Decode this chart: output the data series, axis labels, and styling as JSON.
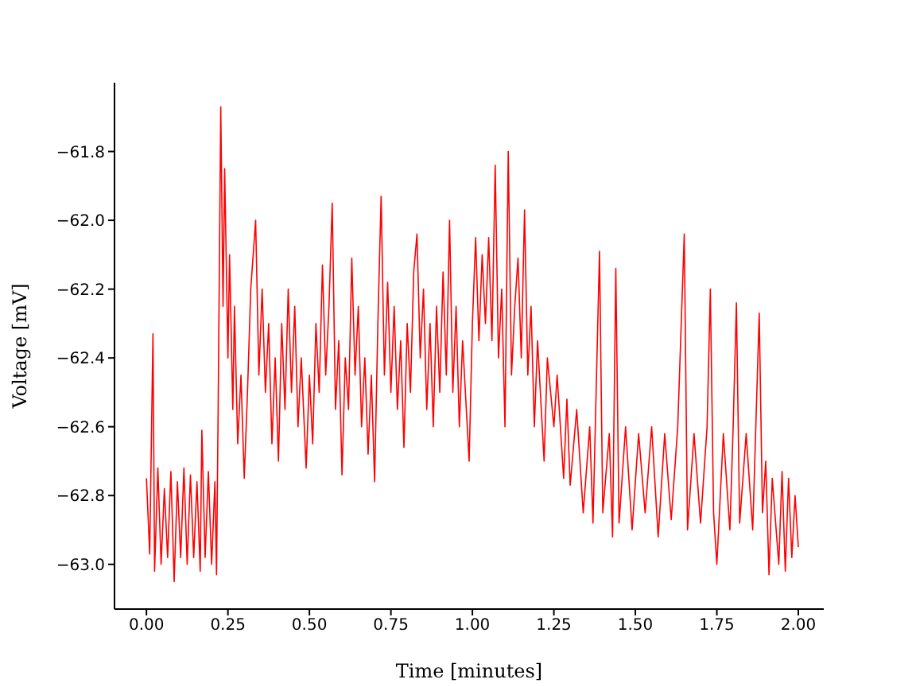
{
  "chart_data": {
    "type": "line",
    "xlabel": "Time [minutes]",
    "ylabel": "Voltage [mV]",
    "xlim": [
      -0.098,
      2.078
    ],
    "ylim": [
      -63.13,
      -61.6
    ],
    "xticks": [
      {
        "value": 0,
        "label": "0.00"
      },
      {
        "value": 0.25,
        "label": "0.25"
      },
      {
        "value": 0.5,
        "label": "0.50"
      },
      {
        "value": 0.75,
        "label": "0.75"
      },
      {
        "value": 1,
        "label": "1.00"
      },
      {
        "value": 1.25,
        "label": "1.25"
      },
      {
        "value": 1.5,
        "label": "1.50"
      },
      {
        "value": 1.75,
        "label": "1.75"
      },
      {
        "value": 2,
        "label": "2.00"
      }
    ],
    "yticks": [
      {
        "value": -63,
        "label": "−63.0"
      },
      {
        "value": -62.8,
        "label": "−62.8"
      },
      {
        "value": -62.6,
        "label": "−62.6"
      },
      {
        "value": -62.4,
        "label": "−62.4"
      },
      {
        "value": -62.2,
        "label": "−62.2"
      },
      {
        "value": -62,
        "label": "−62.0"
      },
      {
        "value": -61.8,
        "label": "−61.8"
      }
    ],
    "grid": false,
    "legend": false,
    "marker": "none",
    "line_style": "solid",
    "x": [
      0.0,
      0.01,
      0.02,
      0.025,
      0.035,
      0.045,
      0.055,
      0.065,
      0.075,
      0.085,
      0.095,
      0.105,
      0.115,
      0.125,
      0.135,
      0.145,
      0.155,
      0.165,
      0.17,
      0.18,
      0.19,
      0.2,
      0.21,
      0.215,
      0.22,
      0.228,
      0.235,
      0.24,
      0.25,
      0.255,
      0.265,
      0.27,
      0.28,
      0.29,
      0.3,
      0.31,
      0.32,
      0.335,
      0.345,
      0.355,
      0.365,
      0.375,
      0.385,
      0.395,
      0.405,
      0.415,
      0.425,
      0.435,
      0.445,
      0.455,
      0.465,
      0.475,
      0.49,
      0.5,
      0.51,
      0.52,
      0.53,
      0.54,
      0.55,
      0.56,
      0.57,
      0.58,
      0.59,
      0.6,
      0.61,
      0.62,
      0.63,
      0.64,
      0.65,
      0.66,
      0.67,
      0.68,
      0.69,
      0.7,
      0.71,
      0.72,
      0.73,
      0.74,
      0.75,
      0.76,
      0.77,
      0.78,
      0.79,
      0.8,
      0.81,
      0.82,
      0.83,
      0.84,
      0.85,
      0.86,
      0.87,
      0.88,
      0.89,
      0.9,
      0.91,
      0.92,
      0.93,
      0.94,
      0.95,
      0.96,
      0.97,
      0.99,
      1.0,
      1.01,
      1.02,
      1.03,
      1.04,
      1.05,
      1.06,
      1.07,
      1.08,
      1.09,
      1.1,
      1.11,
      1.12,
      1.13,
      1.14,
      1.15,
      1.16,
      1.17,
      1.18,
      1.19,
      1.2,
      1.22,
      1.23,
      1.25,
      1.26,
      1.28,
      1.29,
      1.3,
      1.32,
      1.34,
      1.36,
      1.37,
      1.39,
      1.4,
      1.42,
      1.43,
      1.44,
      1.45,
      1.47,
      1.49,
      1.51,
      1.53,
      1.55,
      1.57,
      1.59,
      1.61,
      1.63,
      1.65,
      1.66,
      1.68,
      1.7,
      1.72,
      1.73,
      1.74,
      1.75,
      1.77,
      1.79,
      1.8,
      1.81,
      1.82,
      1.84,
      1.86,
      1.88,
      1.89,
      1.9,
      1.91,
      1.92,
      1.94,
      1.95,
      1.96,
      1.97,
      1.98,
      1.99,
      2.0
    ],
    "series": [
      {
        "color": "#ff0000",
        "values": [
          -62.75,
          -62.97,
          -62.33,
          -63.02,
          -62.72,
          -63.0,
          -62.78,
          -62.98,
          -62.73,
          -63.05,
          -62.76,
          -62.98,
          -62.72,
          -63.0,
          -62.74,
          -62.98,
          -62.76,
          -63.02,
          -62.61,
          -62.98,
          -62.73,
          -63.0,
          -62.76,
          -63.03,
          -62.55,
          -61.67,
          -62.25,
          -61.85,
          -62.4,
          -62.1,
          -62.55,
          -62.25,
          -62.65,
          -62.45,
          -62.75,
          -62.5,
          -62.2,
          -62.0,
          -62.45,
          -62.2,
          -62.5,
          -62.3,
          -62.65,
          -62.4,
          -62.7,
          -62.3,
          -62.55,
          -62.2,
          -62.5,
          -62.25,
          -62.6,
          -62.4,
          -62.72,
          -62.45,
          -62.65,
          -62.3,
          -62.5,
          -62.13,
          -62.45,
          -62.25,
          -61.95,
          -62.55,
          -62.35,
          -62.74,
          -62.4,
          -62.55,
          -62.11,
          -62.45,
          -62.25,
          -62.6,
          -62.4,
          -62.68,
          -62.45,
          -62.76,
          -62.3,
          -61.93,
          -62.45,
          -62.18,
          -62.5,
          -62.25,
          -62.55,
          -62.35,
          -62.66,
          -62.3,
          -62.5,
          -62.15,
          -62.04,
          -62.4,
          -62.2,
          -62.55,
          -62.3,
          -62.6,
          -62.25,
          -62.5,
          -62.15,
          -62.45,
          -62.0,
          -62.5,
          -62.25,
          -62.6,
          -62.35,
          -62.7,
          -62.3,
          -62.05,
          -62.35,
          -62.1,
          -62.3,
          -62.05,
          -62.35,
          -61.84,
          -62.4,
          -62.2,
          -62.6,
          -61.8,
          -62.45,
          -62.25,
          -62.11,
          -62.4,
          -61.97,
          -62.45,
          -62.25,
          -62.6,
          -62.35,
          -62.7,
          -62.4,
          -62.6,
          -62.45,
          -62.75,
          -62.52,
          -62.77,
          -62.55,
          -62.85,
          -62.6,
          -62.88,
          -62.09,
          -62.85,
          -62.62,
          -62.92,
          -62.14,
          -62.88,
          -62.6,
          -62.9,
          -62.62,
          -62.85,
          -62.6,
          -62.92,
          -62.62,
          -62.87,
          -62.6,
          -62.04,
          -62.9,
          -62.62,
          -62.88,
          -62.6,
          -62.2,
          -62.85,
          -63.0,
          -62.62,
          -62.9,
          -62.6,
          -62.24,
          -62.88,
          -62.62,
          -62.9,
          -62.27,
          -62.85,
          -62.7,
          -63.03,
          -62.75,
          -63.0,
          -62.73,
          -63.02,
          -62.75,
          -62.98,
          -62.8,
          -62.95
        ]
      }
    ]
  }
}
